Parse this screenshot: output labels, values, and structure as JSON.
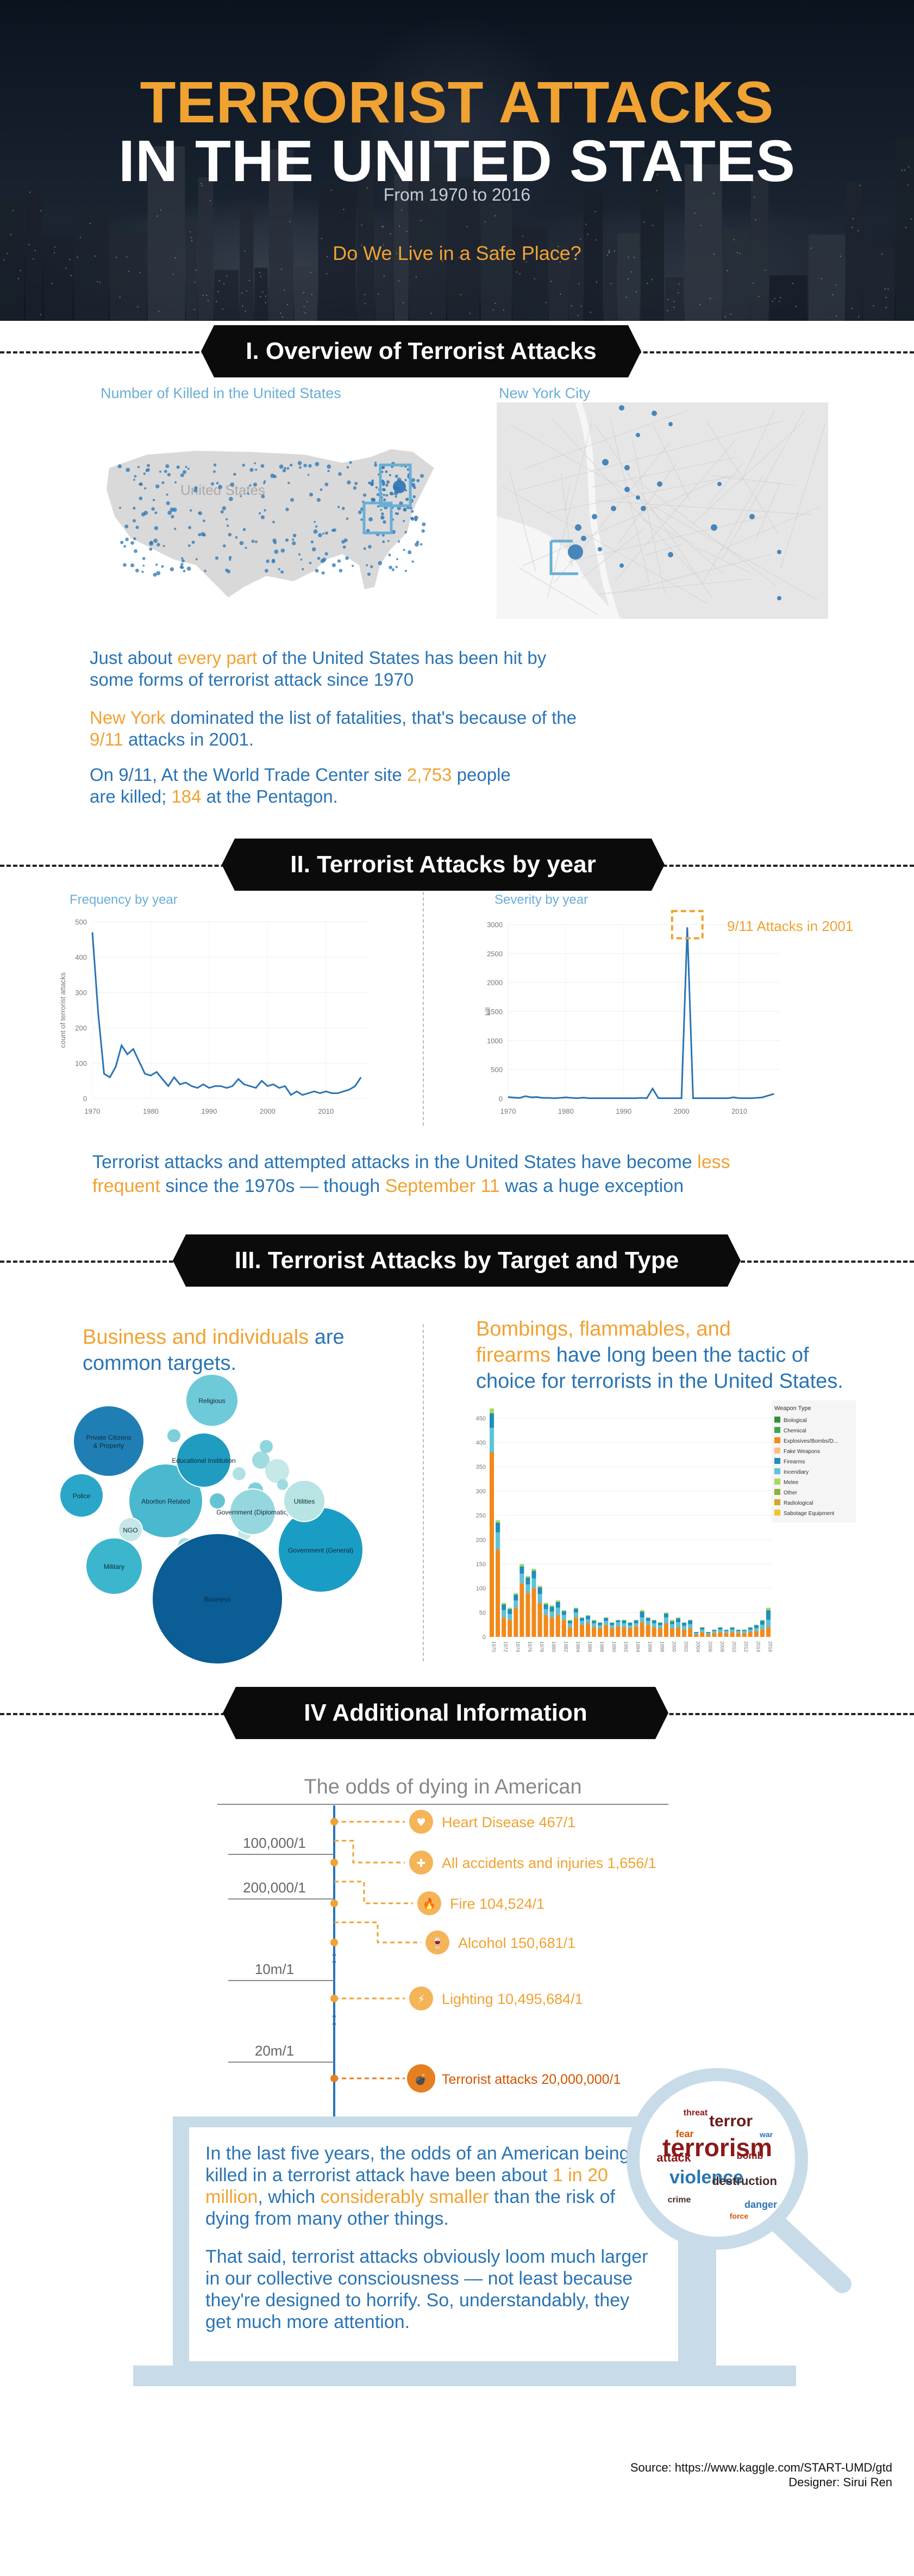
{
  "header": {
    "title_line1": "TERRORIST ATTACKS",
    "title_line2": "IN THE UNITED STATES",
    "subtitle": "From 1970 to 2016",
    "question": "Do We Live in a Safe Place?"
  },
  "sections": {
    "s1": "I. Overview of Terrorist Attacks",
    "s2": "II. Terrorist Attacks by year",
    "s3": "III. Terrorist Attacks by Target and Type",
    "s4": "IV Additional Information"
  },
  "overview": {
    "map_us_label": "Number of Killed in the United States",
    "map_us_text": "United States",
    "map_ny_label": "New York City",
    "p1_a": "Just about ",
    "p1_b": "every part",
    "p1_c": " of the United States has been hit by",
    "p1_d": "some  forms of terrorist attack since 1970",
    "p2_a": "New York",
    "p2_b": " dominated the list of fatalities, that's because of the",
    "p2_c": "9/11",
    "p2_d": " attacks in 2001.",
    "p3_a": "On 9/11, At the World Trade Center site ",
    "p3_b": "2,753",
    "p3_c": " people",
    "p3_d": "are  killed; ",
    "p3_e": "184",
    "p3_f": " at the Pentagon."
  },
  "by_year": {
    "text_a": "Terrorist attacks and attempted attacks in the United States have become  ",
    "text_b": "less",
    "text_c": "frequent",
    "text_d": " since the 1970s — though ",
    "text_e": "September 11",
    "text_f": " was a huge exception",
    "annotation": "9/11 Attacks in 2001"
  },
  "chart_data": [
    {
      "type": "line",
      "title": "Frequency by year",
      "xlabel": "",
      "ylabel": "count of terrorist attacks",
      "x": [
        1970,
        1971,
        1972,
        1973,
        1974,
        1975,
        1976,
        1977,
        1978,
        1979,
        1980,
        1981,
        1982,
        1983,
        1984,
        1985,
        1986,
        1987,
        1988,
        1989,
        1990,
        1991,
        1992,
        1993,
        1994,
        1995,
        1996,
        1997,
        1998,
        1999,
        2000,
        2001,
        2002,
        2003,
        2004,
        2005,
        2006,
        2007,
        2008,
        2009,
        2010,
        2011,
        2012,
        2013,
        2014,
        2015,
        2016
      ],
      "values": [
        470,
        240,
        70,
        60,
        90,
        150,
        125,
        140,
        105,
        70,
        65,
        75,
        55,
        35,
        60,
        40,
        45,
        35,
        30,
        40,
        30,
        35,
        35,
        30,
        35,
        55,
        40,
        35,
        30,
        50,
        35,
        40,
        30,
        35,
        10,
        20,
        10,
        15,
        20,
        15,
        20,
        15,
        15,
        20,
        25,
        35,
        60
      ],
      "xticks": [
        1970,
        1980,
        1990,
        2000,
        2010
      ],
      "yticks": [
        0,
        100,
        200,
        300,
        400,
        500
      ],
      "ylim": [
        0,
        500
      ]
    },
    {
      "type": "line",
      "title": "Severity by year",
      "xlabel": "",
      "ylabel": "kill",
      "x": [
        1970,
        1971,
        1972,
        1973,
        1974,
        1975,
        1976,
        1977,
        1978,
        1979,
        1980,
        1981,
        1982,
        1983,
        1984,
        1985,
        1986,
        1987,
        1988,
        1989,
        1990,
        1991,
        1992,
        1993,
        1994,
        1995,
        1996,
        1997,
        1998,
        1999,
        2000,
        2001,
        2002,
        2003,
        2004,
        2005,
        2006,
        2007,
        2008,
        2009,
        2010,
        2011,
        2012,
        2013,
        2014,
        2015,
        2016
      ],
      "values": [
        25,
        15,
        10,
        40,
        20,
        25,
        10,
        10,
        5,
        10,
        20,
        10,
        5,
        15,
        5,
        5,
        5,
        5,
        5,
        5,
        5,
        5,
        5,
        10,
        5,
        170,
        5,
        5,
        5,
        5,
        5,
        2950,
        5,
        5,
        5,
        5,
        5,
        5,
        5,
        20,
        5,
        5,
        5,
        10,
        20,
        50,
        80
      ],
      "xticks": [
        1970,
        1980,
        1990,
        2000,
        2010
      ],
      "yticks": [
        0,
        500,
        1000,
        1500,
        2000,
        2500,
        3000
      ],
      "ylim": [
        0,
        3000
      ]
    },
    {
      "type": "scatter",
      "title": "",
      "series": [
        {
          "name": "Business",
          "size": 100
        },
        {
          "name": "Private Citizens & Property",
          "size": 45
        },
        {
          "name": "Government (General)",
          "size": 38
        },
        {
          "name": "Abortion Related",
          "size": 30
        },
        {
          "name": "Educational Institution",
          "size": 26
        },
        {
          "name": "Military",
          "size": 22
        },
        {
          "name": "Religious",
          "size": 20
        },
        {
          "name": "Police",
          "size": 18
        },
        {
          "name": "Government (Diplomatic)",
          "size": 18
        },
        {
          "name": "Utilities",
          "size": 14
        },
        {
          "name": "NGO",
          "size": 8
        }
      ]
    },
    {
      "type": "bar",
      "title": "",
      "legend_title": "Weapon Type",
      "legend": [
        "Biological",
        "Chemical",
        "Explosives/Bombs/D...",
        "Fake Weapons",
        "Firearms",
        "Incendiary",
        "Melee",
        "Other",
        "Radiological",
        "Sabotage Equipment"
      ],
      "legend_colors": [
        "#2f8f3a",
        "#3aa655",
        "#f08a1c",
        "#f6c085",
        "#1f8fb8",
        "#5fc2d8",
        "#a7d95b",
        "#8fae3b",
        "#d4a52b",
        "#f2c230"
      ],
      "yticks": [
        0,
        50,
        100,
        150,
        200,
        250,
        300,
        350,
        400,
        450
      ],
      "ylim": [
        0,
        470
      ],
      "x": [
        1970,
        1971,
        1972,
        1973,
        1974,
        1975,
        1976,
        1977,
        1978,
        1979,
        1980,
        1981,
        1982,
        1983,
        1984,
        1985,
        1986,
        1987,
        1988,
        1989,
        1990,
        1991,
        1992,
        1993,
        1994,
        1995,
        1996,
        1997,
        1998,
        1999,
        2000,
        2001,
        2002,
        2003,
        2004,
        2005,
        2006,
        2007,
        2008,
        2009,
        2010,
        2011,
        2012,
        2013,
        2014,
        2015,
        2016
      ],
      "series": [
        {
          "name": "Explosives/Bombs/D...",
          "values": [
            380,
            180,
            40,
            35,
            60,
            110,
            90,
            100,
            70,
            45,
            40,
            45,
            35,
            20,
            40,
            25,
            28,
            20,
            18,
            25,
            18,
            22,
            20,
            18,
            22,
            30,
            25,
            20,
            18,
            28,
            18,
            20,
            15,
            18,
            5,
            10,
            5,
            8,
            10,
            8,
            10,
            8,
            8,
            10,
            12,
            15,
            20
          ]
        },
        {
          "name": "Incendiary",
          "values": [
            50,
            35,
            15,
            12,
            15,
            20,
            18,
            20,
            18,
            12,
            12,
            15,
            10,
            8,
            10,
            8,
            8,
            8,
            6,
            8,
            6,
            8,
            8,
            6,
            6,
            10,
            8,
            8,
            6,
            12,
            8,
            10,
            8,
            8,
            3,
            5,
            3,
            4,
            5,
            4,
            5,
            4,
            4,
            5,
            6,
            10,
            15
          ]
        },
        {
          "name": "Firearms",
          "values": [
            30,
            20,
            12,
            10,
            12,
            15,
            14,
            16,
            14,
            10,
            10,
            12,
            8,
            5,
            8,
            6,
            7,
            5,
            5,
            6,
            5,
            4,
            6,
            5,
            6,
            12,
            6,
            6,
            5,
            8,
            6,
            8,
            6,
            8,
            2,
            4,
            2,
            2,
            4,
            2,
            4,
            2,
            2,
            4,
            6,
            8,
            20
          ]
        },
        {
          "name": "Melee",
          "values": [
            10,
            5,
            3,
            3,
            3,
            5,
            3,
            4,
            3,
            3,
            3,
            3,
            2,
            2,
            2,
            1,
            2,
            2,
            1,
            1,
            1,
            1,
            1,
            1,
            1,
            3,
            1,
            1,
            1,
            2,
            3,
            2,
            1,
            1,
            0,
            1,
            0,
            1,
            1,
            1,
            1,
            1,
            1,
            1,
            1,
            2,
            5
          ]
        }
      ]
    }
  ],
  "targets": {
    "title_a": "Business and individuals",
    "title_b": " are",
    "title_c": "common targets."
  },
  "weapons": {
    "title_a": "Bombings, flammables, and",
    "title_b": "firearms",
    "title_c": "  have long been the tactic of",
    "title_d": "choice for terrorists in the United States."
  },
  "odds": {
    "title": "The odds of dying in American",
    "items": [
      {
        "label": "Heart Disease 467/1",
        "icon": "heart-icon"
      },
      {
        "label": "All accidents and injuries 1,656/1",
        "icon": "ambulance-icon"
      },
      {
        "label": "Fire 104,524/1",
        "icon": "fire-icon"
      },
      {
        "label": "Alcohol 150,681/1",
        "icon": "wine-glass-icon"
      },
      {
        "label": "Lighting 10,495,684/1",
        "icon": "lightning-cloud-icon"
      },
      {
        "label": "Terrorist attacks 20,000,000/1",
        "icon": "bomb-icon"
      }
    ],
    "scale": [
      "100,000/1",
      "200,000/1",
      "10m/1",
      "20m/1"
    ]
  },
  "conclusion": {
    "p1_a": "In the last five years, the odds of an American being killed in a terrorist attack have been about  ",
    "p1_b": "1 in 20 million",
    "p1_c": ",  which  ",
    "p1_d": "considerably smaller",
    "p1_e": " than the risk of dying from many other things.",
    "p2": "That said, terrorist attacks obviously loom much larger in our collective consciousness  — not least because they're designed to horrify. So, understandably, they get much more attention.",
    "words": [
      "terrorism",
      "violence",
      "terror",
      "attack",
      "destruction",
      "bomb",
      "fear",
      "danger",
      "crime",
      "war",
      "threat",
      "force"
    ]
  },
  "footer": {
    "source": "Source: https://www.kaggle.com/START-UMD/gtd",
    "designer": "Designer: Sirui Ren"
  },
  "colors": {
    "accent": "#f0a232",
    "blue": "#2a74b3",
    "light_blue": "#6aaed6",
    "banner": "#0b0b0b"
  }
}
